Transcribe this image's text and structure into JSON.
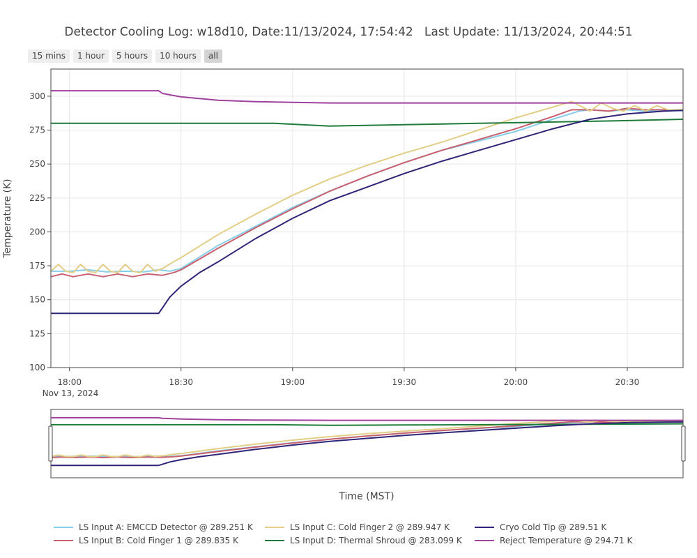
{
  "title": "Detector Cooling Log: w18d10, Date:11/13/2024, 17:54:42   Last Update: 11/13/2024, 20:44:51",
  "range_buttons": [
    {
      "label": "15 mins",
      "active": false
    },
    {
      "label": "1 hour",
      "active": false
    },
    {
      "label": "5 hours",
      "active": false
    },
    {
      "label": "10 hours",
      "active": false
    },
    {
      "label": "all",
      "active": true
    }
  ],
  "chart_data": {
    "type": "line",
    "xlabel": "Time (MST)",
    "ylabel": "Temperature (K)",
    "x_range_minutes": [
      -5,
      165
    ],
    "x_tick_minutes": [
      0,
      30,
      60,
      90,
      120,
      150
    ],
    "x_tick_labels": [
      "18:00",
      "18:30",
      "19:00",
      "19:30",
      "20:00",
      "20:30"
    ],
    "x_date_label": "Nov 13, 2024",
    "ylim": [
      100,
      320
    ],
    "y_ticks": [
      100,
      125,
      150,
      175,
      200,
      225,
      250,
      275,
      300
    ],
    "grid": true,
    "legend_position": "bottom",
    "rangeslider": true,
    "series": [
      {
        "name": "LS Input A: EMCCD Detector @ 289.251 K",
        "color": "#87CEEB",
        "x": [
          -5,
          0,
          5,
          10,
          15,
          20,
          24,
          27,
          30,
          40,
          50,
          60,
          70,
          80,
          90,
          100,
          110,
          120,
          130,
          137,
          140,
          145,
          150,
          155,
          160,
          165
        ],
        "y": [
          171,
          171,
          172,
          170.5,
          171,
          170.5,
          172,
          171,
          173,
          190,
          204,
          218,
          230,
          241,
          251,
          260,
          267,
          274,
          283,
          289,
          290,
          289,
          290,
          289,
          289.5,
          289.3
        ]
      },
      {
        "name": "LS Input B: Cold Finger 1 @ 289.835 K",
        "color": "#C8606E",
        "x": [
          -5,
          -2,
          1,
          5,
          9,
          13,
          17,
          21,
          25,
          28,
          30,
          40,
          50,
          60,
          70,
          80,
          90,
          100,
          110,
          120,
          130,
          135,
          140,
          145,
          150,
          155,
          160,
          165
        ],
        "y": [
          167,
          169,
          167,
          169,
          167,
          169,
          167,
          169,
          168,
          170,
          172,
          188,
          203,
          217,
          230,
          241,
          251,
          260,
          268,
          276,
          285,
          290,
          290,
          289,
          291,
          290,
          290,
          289.8
        ]
      },
      {
        "name": "LS Input C: Cold Finger 2 @ 289.947 K",
        "color": "#E2CE86",
        "x": [
          -5,
          -3,
          -1,
          1,
          3,
          5,
          7,
          9,
          11,
          13,
          15,
          17,
          19,
          21,
          23,
          25,
          28,
          30,
          40,
          50,
          60,
          70,
          80,
          90,
          100,
          110,
          120,
          130,
          135,
          138,
          140,
          143,
          146,
          149,
          152,
          155,
          158,
          161,
          165
        ],
        "y": [
          171,
          176,
          171,
          170,
          176,
          171,
          170,
          176,
          171,
          170,
          176,
          171,
          170,
          176,
          171,
          173,
          178,
          181,
          198,
          213,
          227,
          239,
          249,
          258,
          266,
          275,
          284,
          292,
          296,
          292,
          289,
          295,
          291,
          289,
          293,
          289,
          293,
          290,
          290
        ]
      },
      {
        "name": "LS Input D: Thermal Shroud @ 283.099 K",
        "color": "#1E7B3A",
        "x": [
          -5,
          20,
          40,
          55,
          70,
          90,
          110,
          130,
          150,
          165
        ],
        "y": [
          280,
          280,
          280,
          280,
          278,
          279,
          280,
          281,
          282,
          283
        ]
      },
      {
        "name": "Cryo Cold Tip @ 289.51 K",
        "color": "#2E2578",
        "x": [
          -5,
          0,
          10,
          20,
          24,
          25,
          27,
          30,
          35,
          40,
          50,
          60,
          70,
          80,
          90,
          100,
          110,
          120,
          130,
          140,
          150,
          160,
          165
        ],
        "y": [
          140,
          140,
          140,
          140,
          140,
          144,
          152,
          160,
          170,
          178,
          195,
          210,
          223,
          233,
          243,
          252,
          260,
          268,
          276,
          283,
          287,
          289,
          289.5
        ]
      },
      {
        "name": "Reject Temperature @ 294.71 K",
        "color": "#A0419E",
        "x": [
          -5,
          10,
          24,
          25,
          30,
          40,
          50,
          60,
          70,
          90,
          110,
          130,
          150,
          165
        ],
        "y": [
          304,
          304,
          304,
          302,
          299.5,
          297,
          296,
          295.5,
          295,
          295,
          295,
          295,
          295,
          295
        ]
      }
    ]
  }
}
